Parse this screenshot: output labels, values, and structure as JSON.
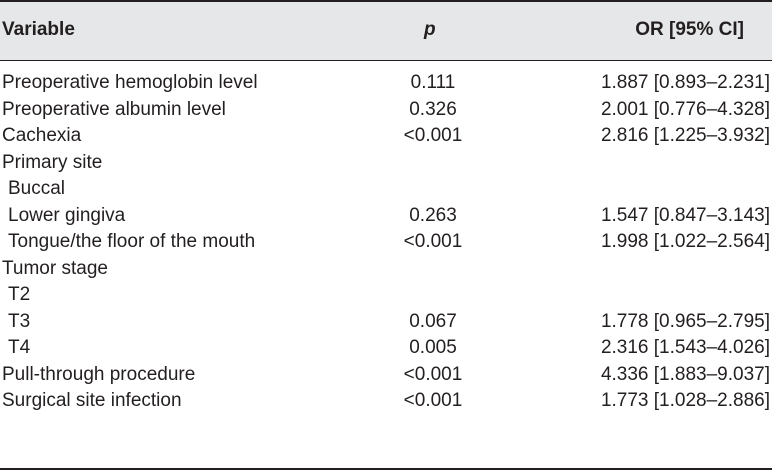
{
  "header": {
    "variable": "Variable",
    "p": "p",
    "or": "OR [95% CI]"
  },
  "rows": [
    {
      "variable": "Preoperative hemoglobin level",
      "p": "0.111",
      "or": "1.887 [0.893–2.231]",
      "indent": false
    },
    {
      "variable": "Preoperative albumin level",
      "p": "0.326",
      "or": "2.001 [0.776–4.328]",
      "indent": false
    },
    {
      "variable": "Cachexia",
      "p": "<0.001",
      "or": "2.816 [1.225–3.932]",
      "indent": false
    },
    {
      "variable": "Primary site",
      "p": "",
      "or": "",
      "indent": false
    },
    {
      "variable": "Buccal",
      "p": "",
      "or": "",
      "indent": true
    },
    {
      "variable": "Lower gingiva",
      "p": "0.263",
      "or": "1.547 [0.847–3.143]",
      "indent": true
    },
    {
      "variable": "Tongue/the floor of the mouth",
      "p": "<0.001",
      "or": "1.998 [1.022–2.564]",
      "indent": true
    },
    {
      "variable": "Tumor stage",
      "p": "",
      "or": "",
      "indent": false
    },
    {
      "variable": "T2",
      "p": "",
      "or": "",
      "indent": true
    },
    {
      "variable": "T3",
      "p": "0.067",
      "or": "1.778 [0.965–2.795]",
      "indent": true
    },
    {
      "variable": "T4",
      "p": "0.005",
      "or": "2.316 [1.543–4.026]",
      "indent": true
    },
    {
      "variable": "Pull-through procedure",
      "p": "<0.001",
      "or": "4.336 [1.883–9.037]",
      "indent": false
    },
    {
      "variable": "Surgical site infection",
      "p": "<0.001",
      "or": "1.773 [1.028–2.886]",
      "indent": false
    }
  ]
}
